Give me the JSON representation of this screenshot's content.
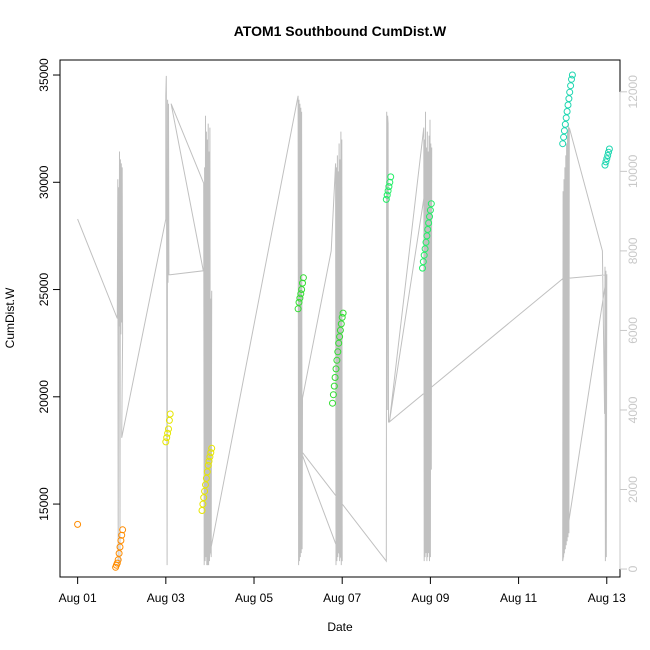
{
  "chart_data": {
    "type": "scatter",
    "title": "ATOM1 Southbound CumDist.W",
    "xlabel": "Date",
    "ylabel": "CumDist.W",
    "x_ticks": [
      "Aug 01",
      "Aug 03",
      "Aug 05",
      "Aug 07",
      "Aug 09",
      "Aug 11",
      "Aug 13"
    ],
    "xlim_days": [
      0.6,
      13.3
    ],
    "ylim": [
      11600,
      35700
    ],
    "y_ticks": [
      15000,
      20000,
      25000,
      30000,
      35000
    ],
    "y2lim": [
      -200,
      12800
    ],
    "y2_ticks": [
      0,
      2000,
      4000,
      6000,
      8000,
      10000,
      12000
    ],
    "grid": false,
    "colors": {
      "line": "#c0c0c0",
      "orange": "#ff8c00",
      "yellow": "#e6e600",
      "green": "#33dd33",
      "lightgreen": "#22ee66",
      "teal": "#1dd6b0"
    },
    "scatter_series": [
      {
        "color": "orange",
        "x": [
          1.0,
          1.86,
          1.88,
          1.9,
          1.92,
          1.94,
          1.96,
          1.98,
          2.0,
          2.02
        ],
        "y": [
          14050,
          12050,
          12150,
          12250,
          12400,
          12700,
          13000,
          13300,
          13550,
          13800
        ]
      },
      {
        "color": "yellow",
        "x": [
          3.0,
          3.02,
          3.04,
          3.06,
          3.08,
          3.1
        ],
        "y": [
          17900,
          18100,
          18300,
          18500,
          18900,
          19200
        ]
      },
      {
        "color": "yellow",
        "x": [
          3.82,
          3.84,
          3.86,
          3.88,
          3.9,
          3.92,
          3.94,
          3.96,
          3.98,
          4.0,
          4.02,
          4.04
        ],
        "y": [
          14700,
          15000,
          15300,
          15600,
          15900,
          16200,
          16500,
          16800,
          17000,
          17200,
          17400,
          17600
        ]
      },
      {
        "color": "green",
        "x": [
          6.0,
          6.02,
          6.04,
          6.06,
          6.08,
          6.1,
          6.12
        ],
        "y": [
          24100,
          24400,
          24600,
          24800,
          25000,
          25300,
          25550
        ]
      },
      {
        "color": "green",
        "x": [
          6.78,
          6.8,
          6.82,
          6.84,
          6.86,
          6.88,
          6.9,
          6.92,
          6.94,
          6.96,
          6.98,
          7.0,
          7.02
        ],
        "y": [
          19700,
          20100,
          20500,
          20900,
          21300,
          21700,
          22100,
          22500,
          22800,
          23100,
          23400,
          23700,
          23900
        ]
      },
      {
        "color": "lightgreen",
        "x": [
          8.0,
          8.02,
          8.04,
          8.06,
          8.08,
          8.1
        ],
        "y": [
          29200,
          29400,
          29600,
          29800,
          30000,
          30250
        ]
      },
      {
        "color": "lightgreen",
        "x": [
          8.82,
          8.84,
          8.86,
          8.88,
          8.9,
          8.92,
          8.94,
          8.96,
          8.98,
          9.0,
          9.02
        ],
        "y": [
          26000,
          26300,
          26600,
          26900,
          27200,
          27500,
          27800,
          28100,
          28400,
          28700,
          29000
        ]
      },
      {
        "color": "teal",
        "x": [
          12.0,
          12.02,
          12.04,
          12.06,
          12.08,
          12.1,
          12.12,
          12.14,
          12.16,
          12.18,
          12.2,
          12.22
        ],
        "y": [
          31800,
          32100,
          32400,
          32700,
          33000,
          33300,
          33600,
          33900,
          34200,
          34500,
          34800,
          35000
        ]
      },
      {
        "color": "teal",
        "x": [
          12.96,
          12.98,
          13.0,
          13.02,
          13.04,
          13.06
        ],
        "y": [
          30800,
          30950,
          31100,
          31250,
          31400,
          31550
        ]
      }
    ],
    "line_series_y2": {
      "x": [
        1.0,
        1.9,
        1.91,
        1.92,
        1.93,
        1.94,
        1.95,
        1.96,
        1.97,
        1.98,
        1.99,
        2.0,
        2.01,
        2.02,
        2.0,
        3.0,
        3.0,
        3.01,
        3.02,
        3.03,
        3.04,
        3.05,
        3.06,
        3.07,
        3.08,
        3.1,
        3.85,
        3.12,
        3.86,
        3.87,
        3.88,
        3.89,
        3.9,
        3.91,
        3.92,
        3.93,
        3.94,
        3.95,
        3.96,
        3.97,
        3.98,
        3.99,
        4.0,
        4.01,
        4.02,
        4.03,
        4.04,
        3.95,
        6.0,
        6.01,
        6.02,
        6.03,
        6.04,
        6.05,
        6.06,
        6.07,
        6.08,
        6.09,
        6.1,
        6.75,
        6.85,
        6.86,
        6.87,
        6.88,
        6.89,
        6.9,
        6.91,
        6.92,
        6.93,
        6.94,
        6.95,
        6.96,
        6.97,
        6.98,
        6.99,
        7.0,
        6.05,
        8.0,
        8.01,
        8.02,
        8.03,
        8.04,
        8.05,
        8.06,
        8.07,
        8.85,
        8.86,
        8.87,
        8.88,
        8.89,
        8.9,
        8.91,
        8.92,
        8.93,
        8.94,
        8.95,
        8.96,
        8.97,
        8.98,
        8.99,
        9.0,
        9.01,
        9.02,
        9.03,
        8.07,
        12.0,
        13.0,
        12.0,
        12.01,
        12.02,
        12.03,
        12.04,
        12.05,
        12.06,
        12.07,
        12.08,
        12.09,
        12.1,
        12.11,
        12.12,
        12.13,
        12.14,
        12.15,
        12.9,
        12.95,
        12.96,
        12.97,
        12.98,
        12.99,
        13.0
      ],
      "y": [
        8800,
        6300,
        9800,
        100,
        9600,
        6100,
        10500,
        200,
        10300,
        5900,
        10200,
        6200,
        10100,
        5800,
        3300,
        8800,
        11900,
        12400,
        7400,
        100,
        11800,
        7200,
        11700,
        7400,
        7400,
        7400,
        7500,
        11700,
        9700,
        100,
        10100,
        200,
        11400,
        300,
        11000,
        100,
        10800,
        200,
        11200,
        100,
        10500,
        200,
        11100,
        400,
        6800,
        300,
        7000,
        100,
        11900,
        100,
        11800,
        200,
        11700,
        300,
        11600,
        400,
        11500,
        500,
        4300,
        8000,
        10200,
        100,
        10100,
        200,
        10400,
        300,
        10000,
        400,
        10700,
        200,
        10300,
        300,
        11000,
        100,
        10800,
        200,
        3000,
        200,
        11500,
        4000,
        11400,
        11200,
        3700,
        3700,
        3700,
        11100,
        200,
        10800,
        300,
        11500,
        400,
        10600,
        200,
        11000,
        300,
        10500,
        400,
        10900,
        200,
        11300,
        300,
        10700,
        2500,
        10600,
        3700,
        7300,
        7400,
        200,
        9500,
        300,
        9800,
        400,
        10100,
        500,
        10400,
        600,
        10700,
        700,
        11000,
        800,
        11200,
        900,
        11100,
        8000,
        3900,
        7600,
        200,
        7500,
        300,
        7400
      ]
    }
  }
}
